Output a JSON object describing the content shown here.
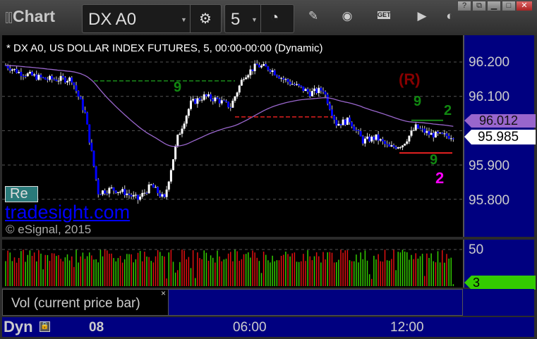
{
  "window": {
    "title": "Chart",
    "symbol": "DX A0",
    "interval": "5",
    "buttons": [
      "?",
      "restore-down",
      "minimize",
      "maximize",
      "close"
    ],
    "toolbar_icons": [
      "gear-icon",
      "clock-icon",
      "pencil-icon",
      "chart-style-icon",
      "get-icon",
      "play-icon",
      "more-icon"
    ],
    "get_label": "GET"
  },
  "chart": {
    "header": "* DX A0, US DOLLAR INDEX FUTURES, 5, 00:00-00:00 (Dynamic)",
    "watermark": "tradesight.com",
    "copyright": "© eSignal, 2015",
    "partial_box_label": "Re",
    "annotations": {
      "r_label": "(R)",
      "green_2": "2",
      "magenta_2": "2",
      "nine_a": "9",
      "nine_b": "9",
      "nine_c": "9"
    },
    "colors": {
      "up": "#ffffff",
      "down": "#0000ff",
      "ma": "#9966cc",
      "background": "#000000",
      "axis": "#000080"
    }
  },
  "price_axis": {
    "ticks": [
      "96.200",
      "96.100",
      "95.900",
      "95.800"
    ],
    "ma_value": "96.012",
    "last_price": "95.985"
  },
  "volume": {
    "ticks": [
      "50"
    ],
    "last_value": "3",
    "legend": "Vol (current price bar)",
    "close_label": "×"
  },
  "time_axis": {
    "mode": "Dyn",
    "ticks": [
      "08",
      "06:00",
      "12:00"
    ]
  },
  "chart_data": {
    "type": "candlestick",
    "interval_minutes": 5,
    "closes_30min": [
      96.19,
      96.17,
      96.16,
      96.15,
      96.15,
      96.15,
      96.05,
      95.82,
      95.83,
      95.82,
      95.8,
      95.84,
      95.8,
      95.98,
      96.08,
      96.1,
      96.09,
      96.07,
      96.16,
      96.19,
      96.18,
      96.15,
      96.13,
      96.11,
      96.12,
      96.02,
      96.03,
      95.97,
      95.98,
      95.95,
      95.96,
      96.01,
      95.99,
      95.985,
      95.985
    ],
    "ylim": [
      95.7,
      96.26
    ],
    "levels": {
      "green_dashed": 96.145,
      "red_dashed": 96.04,
      "red_solid": 95.935,
      "green_solid": 96.03
    }
  }
}
